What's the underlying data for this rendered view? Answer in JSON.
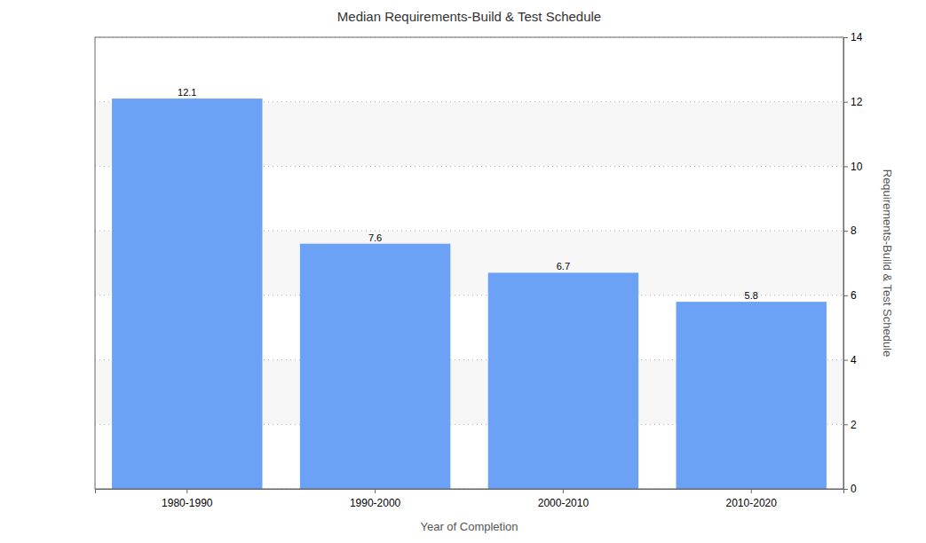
{
  "chart_data": {
    "type": "bar",
    "title": "Median Requirements-Build & Test Schedule",
    "x_label": "Year of Completion",
    "y_label": "Requirements-Build & Test Schedule",
    "categories": [
      "1980-1990",
      "1990-2000",
      "2000-2010",
      "2010-2020"
    ],
    "values": [
      12.1,
      7.6,
      6.7,
      5.8
    ],
    "color": "#6ca2f6",
    "ylim": [
      0,
      14
    ],
    "yticks": [
      0,
      2,
      4,
      6,
      8,
      10,
      12,
      14
    ],
    "grid": true,
    "data_labels": true
  }
}
